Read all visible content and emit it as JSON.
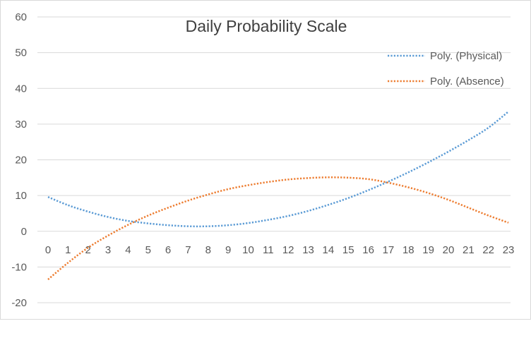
{
  "chart_data": {
    "type": "line",
    "title": "Daily Probability Scale",
    "xlabel": "",
    "ylabel": "",
    "categories": [
      "0",
      "1",
      "2",
      "3",
      "4",
      "5",
      "6",
      "7",
      "8",
      "9",
      "10",
      "11",
      "12",
      "13",
      "14",
      "15",
      "16",
      "17",
      "18",
      "19",
      "20",
      "21",
      "22",
      "23"
    ],
    "yticks": [
      "60",
      "50",
      "40",
      "30",
      "20",
      "10",
      "0",
      "-10",
      "-20"
    ],
    "ylim": [
      -20,
      60
    ],
    "grid": true,
    "legend_position": "top-right",
    "series": [
      {
        "name": "Poly. (Physical)",
        "color": "#5b9bd5",
        "style": "dotted",
        "values": [
          9.6,
          7.3,
          5.5,
          4.0,
          2.9,
          2.2,
          1.7,
          1.4,
          1.4,
          1.7,
          2.3,
          3.2,
          4.3,
          5.7,
          7.4,
          9.3,
          11.5,
          13.9,
          16.5,
          19.3,
          22.3,
          25.5,
          29.0,
          33.5
        ]
      },
      {
        "name": "Poly. (Absence)",
        "color": "#ed7d31",
        "style": "dotted",
        "values": [
          -13.5,
          -8.8,
          -4.6,
          -1.2,
          1.8,
          4.4,
          6.6,
          8.6,
          10.3,
          11.8,
          12.9,
          13.8,
          14.5,
          14.9,
          15.1,
          15.0,
          14.6,
          13.6,
          12.3,
          10.7,
          8.8,
          6.6,
          4.4,
          2.4
        ]
      }
    ]
  }
}
